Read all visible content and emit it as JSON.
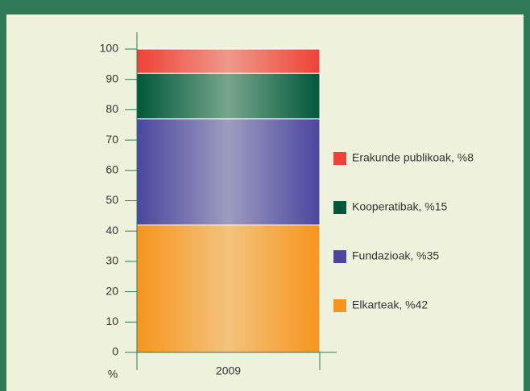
{
  "chart_data": {
    "type": "stacked_bar",
    "categories": [
      "2009"
    ],
    "series": [
      {
        "name": "Elkarteak, %42",
        "color": "#f7941d",
        "values": [
          42
        ]
      },
      {
        "name": "Fundazioak, %35",
        "color": "#4b46a0",
        "values": [
          35
        ]
      },
      {
        "name": "Kooperatibak, %15",
        "color": "#00583a",
        "values": [
          15
        ]
      },
      {
        "name": "Erakunde publikoak, %8",
        "color": "#ef4136",
        "values": [
          8
        ]
      }
    ],
    "y_label": "%",
    "ylim": [
      0,
      100
    ],
    "yticks": [
      0,
      10,
      20,
      30,
      40,
      50,
      60,
      70,
      80,
      90,
      100
    ],
    "legend": "right"
  }
}
